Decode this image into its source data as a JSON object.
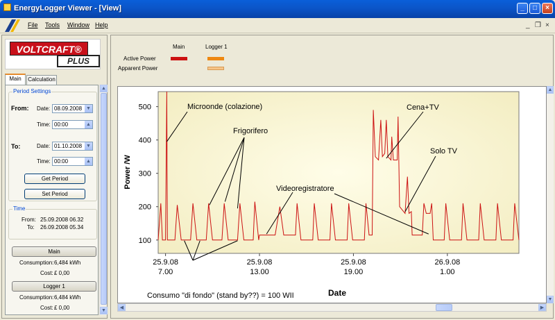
{
  "window": {
    "title": "EnergyLogger Viewer - [View]"
  },
  "menu": {
    "items": [
      "File",
      "Tools",
      "Window",
      "Help"
    ],
    "mdi_restore": "❒",
    "mdi_close": "×",
    "mdi_min": "_"
  },
  "window_controls": {
    "minimize": "_",
    "maximize": "□",
    "close": "×"
  },
  "logo": {
    "brand": "VOLTCRAFT®",
    "sub": "PLUS"
  },
  "tabs": [
    {
      "label": "Main"
    },
    {
      "label": "Calculation"
    }
  ],
  "period": {
    "legend": "Period Settings",
    "from_label": "From:",
    "to_label": "To:",
    "date_label": "Date:",
    "time_label": "Time:",
    "from_date": "08.09.2008",
    "from_time": "00:00",
    "to_date": "01.10.2008",
    "to_time": "00:00",
    "get_button": "Get Period",
    "set_button": "Set Period"
  },
  "time": {
    "legend": "Time",
    "from_label": "From:",
    "to_label": "To:",
    "from_value": "25.09.2008 06.32",
    "to_value": "26.09.2008 05.34"
  },
  "loggers": [
    {
      "name": "Main",
      "consumption_label": "Consumption:",
      "consumption": "6,484 kWh",
      "cost_label": "Cost:",
      "cost": "£ 0,00"
    },
    {
      "name": "Logger 1",
      "consumption_label": "Consumption:",
      "consumption": "6,484 kWh",
      "cost_label": "Cost:",
      "cost": "£ 0,00"
    }
  ],
  "legend": {
    "columns": [
      "Main",
      "Logger 1"
    ],
    "rows": [
      "Active Power",
      "Apparent Power"
    ],
    "colors": {
      "main_active": "#cc1111",
      "logger_active": "#ee8811",
      "logger_apparent": "#f6c487"
    }
  },
  "chart_data": {
    "type": "line",
    "xlabel": "Date",
    "ylabel": "Power /W",
    "ylim": [
      60,
      545
    ],
    "yticks": [
      100,
      200,
      300,
      400,
      500
    ],
    "x_ticks": [
      {
        "h": 7,
        "l1": "25.9.08",
        "l2": "7.00"
      },
      {
        "h": 13,
        "l1": "25.9.08",
        "l2": "13.00"
      },
      {
        "h": 19,
        "l1": "25.9.08",
        "l2": "19.00"
      },
      {
        "h": 25,
        "l1": "26.9.08",
        "l2": "1.00"
      }
    ],
    "x_range_hours": [
      6.53,
      29.57
    ],
    "series": [
      {
        "color": "#cc1111",
        "points": [
          [
            6.53,
            100
          ],
          [
            6.7,
            210
          ],
          [
            6.8,
            100
          ],
          [
            7.0,
            100
          ],
          [
            7.08,
            545
          ],
          [
            7.12,
            100
          ],
          [
            7.6,
            100
          ],
          [
            7.75,
            205
          ],
          [
            8.0,
            100
          ],
          [
            8.6,
            100
          ],
          [
            8.75,
            210
          ],
          [
            9.0,
            100
          ],
          [
            9.6,
            100
          ],
          [
            9.75,
            210
          ],
          [
            10.0,
            100
          ],
          [
            10.6,
            100
          ],
          [
            10.75,
            210
          ],
          [
            11.0,
            100
          ],
          [
            11.6,
            100
          ],
          [
            11.75,
            210
          ],
          [
            12.0,
            100
          ],
          [
            12.6,
            100
          ],
          [
            12.7,
            215
          ],
          [
            12.95,
            100
          ],
          [
            13.0,
            115
          ],
          [
            14.0,
            115
          ],
          [
            14.3,
            200
          ],
          [
            14.55,
            115
          ],
          [
            15.3,
            115
          ],
          [
            15.4,
            210
          ],
          [
            15.65,
            100
          ],
          [
            16.4,
            100
          ],
          [
            16.5,
            210
          ],
          [
            16.75,
            100
          ],
          [
            17.5,
            100
          ],
          [
            17.6,
            210
          ],
          [
            17.85,
            100
          ],
          [
            18.6,
            100
          ],
          [
            18.7,
            210
          ],
          [
            18.95,
            100
          ],
          [
            19.7,
            100
          ],
          [
            19.8,
            210
          ],
          [
            20.0,
            115
          ],
          [
            20.2,
            115
          ],
          [
            20.27,
            490
          ],
          [
            20.4,
            350
          ],
          [
            20.6,
            340
          ],
          [
            20.75,
            460
          ],
          [
            20.85,
            350
          ],
          [
            21.0,
            360
          ],
          [
            21.1,
            460
          ],
          [
            21.2,
            350
          ],
          [
            21.4,
            340
          ],
          [
            21.45,
            410
          ],
          [
            21.55,
            340
          ],
          [
            21.8,
            340
          ],
          [
            21.85,
            470
          ],
          [
            21.95,
            200
          ],
          [
            22.3,
            180
          ],
          [
            22.45,
            290
          ],
          [
            22.55,
            180
          ],
          [
            22.7,
            185
          ],
          [
            22.75,
            115
          ],
          [
            23.4,
            115
          ],
          [
            23.5,
            210
          ],
          [
            23.65,
            180
          ],
          [
            23.9,
            180
          ],
          [
            24.0,
            210
          ],
          [
            24.1,
            100
          ],
          [
            24.8,
            100
          ],
          [
            24.9,
            210
          ],
          [
            25.15,
            100
          ],
          [
            25.9,
            100
          ],
          [
            26.0,
            210
          ],
          [
            26.25,
            100
          ],
          [
            27.0,
            100
          ],
          [
            27.1,
            210
          ],
          [
            27.35,
            100
          ],
          [
            28.1,
            100
          ],
          [
            28.2,
            210
          ],
          [
            28.45,
            100
          ],
          [
            29.2,
            100
          ],
          [
            29.3,
            210
          ],
          [
            29.57,
            100
          ]
        ]
      }
    ],
    "annotations": [
      {
        "text": "Microonde (colazione)"
      },
      {
        "text": "Frigorifero"
      },
      {
        "text": "Videoregistratore"
      },
      {
        "text": "Cena+TV"
      },
      {
        "text": "Solo TV"
      },
      {
        "text": "Consumo \"di fondo\" (stand by??) = 100 WII"
      }
    ]
  }
}
